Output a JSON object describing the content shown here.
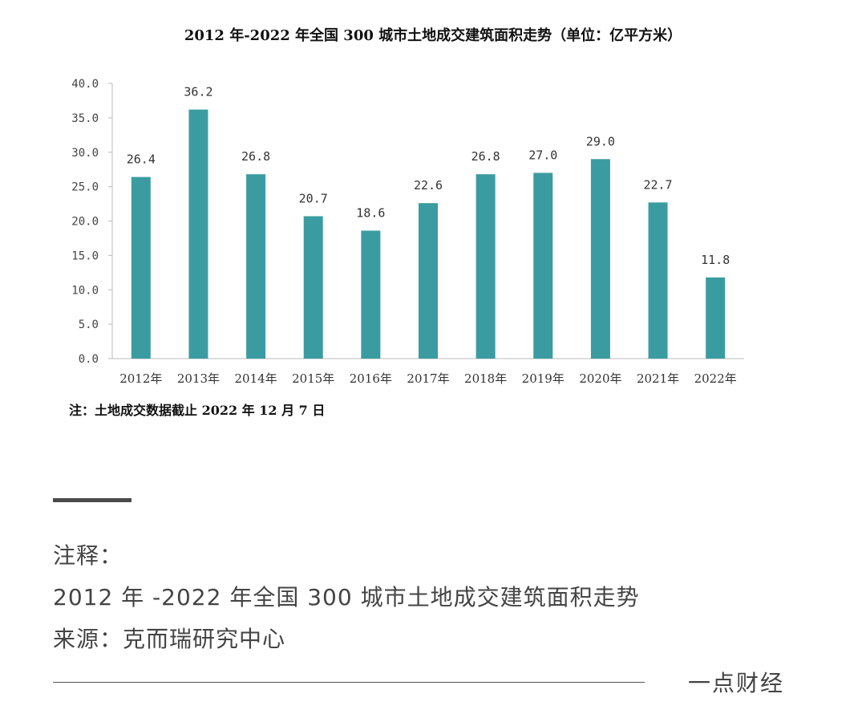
{
  "chart_data": {
    "type": "bar",
    "title": "2012 年-2022 年全国 300 城市土地成交建筑面积走势（单位：亿平方米）",
    "categories": [
      "2012年",
      "2013年",
      "2014年",
      "2015年",
      "2016年",
      "2017年",
      "2018年",
      "2019年",
      "2020年",
      "2021年",
      "2022年"
    ],
    "values": [
      26.4,
      36.2,
      26.8,
      20.7,
      18.6,
      22.6,
      26.8,
      27.0,
      29.0,
      22.7,
      11.8
    ],
    "data_labels": [
      "26.4",
      "36.2",
      "26.8",
      "20.7",
      "18.6",
      "22.6",
      "26.8",
      "27.0",
      "29.0",
      "22.7",
      "11.8"
    ],
    "y_ticks": [
      "0.0",
      "5.0",
      "10.0",
      "15.0",
      "20.0",
      "25.0",
      "30.0",
      "35.0",
      "40.0"
    ],
    "ylim": [
      0,
      40
    ],
    "grid": false,
    "bar_color": "#3a9ca0",
    "note": "注：土地成交数据截止 2022 年 12 月 7 日"
  },
  "notes": {
    "heading": "注释：",
    "line1": "2012 年 -2022 年全国 300 城市土地成交建筑面积走势",
    "line2": "来源：克而瑞研究中心"
  },
  "brand": "一点财经"
}
